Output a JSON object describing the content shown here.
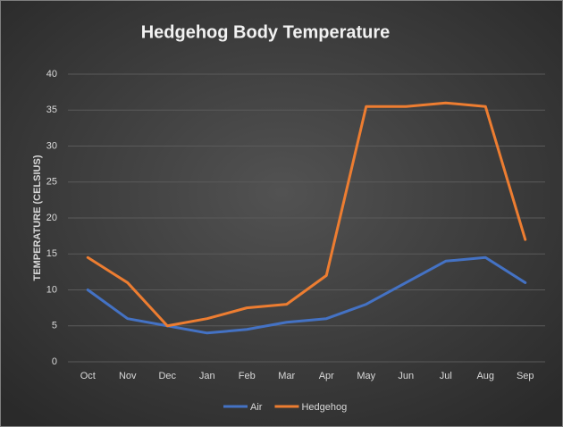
{
  "chart_data": {
    "type": "line",
    "title": "Hedgehog Body Temperature",
    "y_label": "TEMPERATURE (CELSIUS)",
    "categories": [
      "Oct",
      "Nov",
      "Dec",
      "Jan",
      "Feb",
      "Mar",
      "Apr",
      "May",
      "Jun",
      "Jul",
      "Aug",
      "Sep"
    ],
    "series": [
      {
        "name": "Air",
        "color": "#4472c4",
        "values": [
          10,
          6,
          5,
          4,
          4.5,
          5.5,
          6,
          8,
          11,
          14,
          14.5,
          11
        ]
      },
      {
        "name": "Hedgehog",
        "color": "#ed7d31",
        "values": [
          14.5,
          11,
          5,
          6,
          7.5,
          8,
          12,
          35.5,
          35.5,
          36,
          35.5,
          17
        ]
      }
    ],
    "ylim": [
      0,
      40
    ],
    "yticks": [
      0,
      5,
      10,
      15,
      20,
      25,
      30,
      35,
      40
    ],
    "grid": true,
    "legend": "bottom"
  }
}
